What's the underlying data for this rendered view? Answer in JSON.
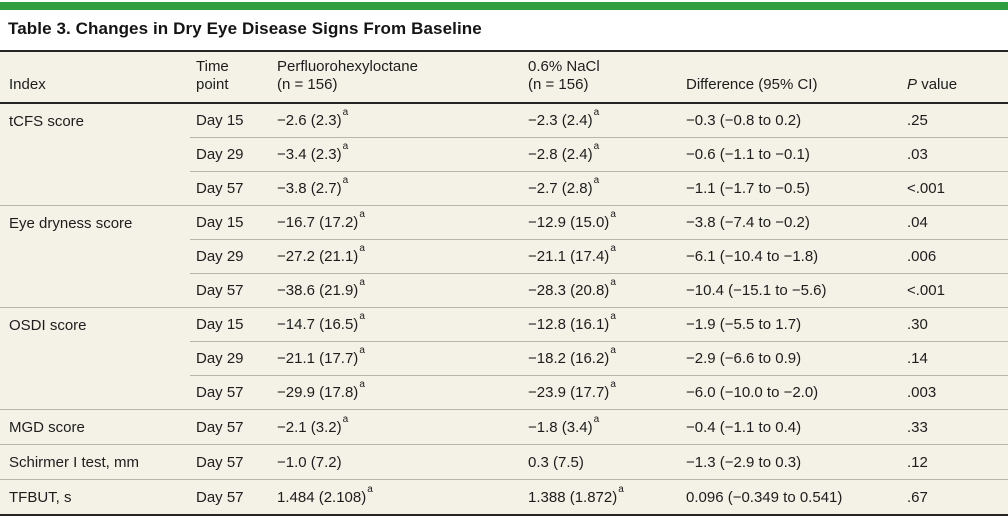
{
  "colors": {
    "top_bar_green": "#2f9e41",
    "table_background": "#f4f1e6",
    "rule_dark": "#242424",
    "rule_light": "#b8b5aa"
  },
  "title": "Table 3. Changes in Dry Eye Disease Signs From Baseline",
  "table": {
    "header": {
      "index": "Index",
      "time_line1": "Time",
      "time_line2": "point",
      "pfho_line1": "Perfluorohexyloctane",
      "pfho_line2": "(n = 156)",
      "nacl_line1": "0.6% NaCl",
      "nacl_line2": "(n = 156)",
      "difference": "Difference (95% CI)",
      "p_italic": "P",
      "p_rest": "value"
    },
    "rows": [
      {
        "index": "tCFS score",
        "time": "Day 15",
        "pfho": "−2.6 (2.3)",
        "pfho_sup": "a",
        "nacl": "−2.3 (2.4)",
        "nacl_sup": "a",
        "difference": "−0.3 (−0.8 to 0.2)",
        "p": ".25"
      },
      {
        "time": "Day 29",
        "pfho": "−3.4 (2.3)",
        "pfho_sup": "a",
        "nacl": "−2.8 (2.4)",
        "nacl_sup": "a",
        "difference": "−0.6 (−1.1 to −0.1)",
        "p": ".03"
      },
      {
        "time": "Day 57",
        "pfho": "−3.8 (2.7)",
        "pfho_sup": "a",
        "nacl": "−2.7 (2.8)",
        "nacl_sup": "a",
        "difference": "−1.1 (−1.7 to −0.5)",
        "p": "<.001"
      },
      {
        "index": "Eye dryness score",
        "time": "Day 15",
        "pfho": "−16.7 (17.2)",
        "pfho_sup": "a",
        "nacl": "−12.9 (15.0)",
        "nacl_sup": "a",
        "difference": "−3.8 (−7.4 to −0.2)",
        "p": ".04"
      },
      {
        "time": "Day 29",
        "pfho": "−27.2 (21.1)",
        "pfho_sup": "a",
        "nacl": "−21.1 (17.4)",
        "nacl_sup": "a",
        "difference": "−6.1 (−10.4 to −1.8)",
        "p": ".006"
      },
      {
        "time": "Day 57",
        "pfho": "−38.6 (21.9)",
        "pfho_sup": "a",
        "nacl": "−28.3 (20.8)",
        "nacl_sup": "a",
        "difference": "−10.4 (−15.1 to −5.6)",
        "p": "<.001"
      },
      {
        "index": "OSDI score",
        "time": "Day 15",
        "pfho": "−14.7 (16.5)",
        "pfho_sup": "a",
        "nacl": "−12.8 (16.1)",
        "nacl_sup": "a",
        "difference": "−1.9 (−5.5 to 1.7)",
        "p": ".30"
      },
      {
        "time": "Day 29",
        "pfho": "−21.1 (17.7)",
        "pfho_sup": "a",
        "nacl": "−18.2 (16.2)",
        "nacl_sup": "a",
        "difference": "−2.9 (−6.6 to 0.9)",
        "p": ".14"
      },
      {
        "time": "Day 57",
        "pfho": "−29.9 (17.8)",
        "pfho_sup": "a",
        "nacl": "−23.9 (17.7)",
        "nacl_sup": "a",
        "difference": "−6.0 (−10.0 to −2.0)",
        "p": ".003"
      },
      {
        "index": "MGD score",
        "time": "Day 57",
        "pfho": "−2.1 (3.2)",
        "pfho_sup": "a",
        "nacl": "−1.8 (3.4)",
        "nacl_sup": "a",
        "difference": "−0.4 (−1.1 to 0.4)",
        "p": ".33"
      },
      {
        "index": "Schirmer I test, mm",
        "time": "Day 57",
        "pfho": "−1.0 (7.2)",
        "nacl": "0.3 (7.5)",
        "difference": "−1.3 (−2.9 to 0.3)",
        "p": ".12"
      },
      {
        "index": "TFBUT, s",
        "time": "Day 57",
        "pfho": "1.484 (2.108)",
        "pfho_sup": "a",
        "nacl": "1.388 (1.872)",
        "nacl_sup": "a",
        "difference": "0.096 (−0.349 to 0.541)",
        "p": ".67"
      }
    ]
  }
}
